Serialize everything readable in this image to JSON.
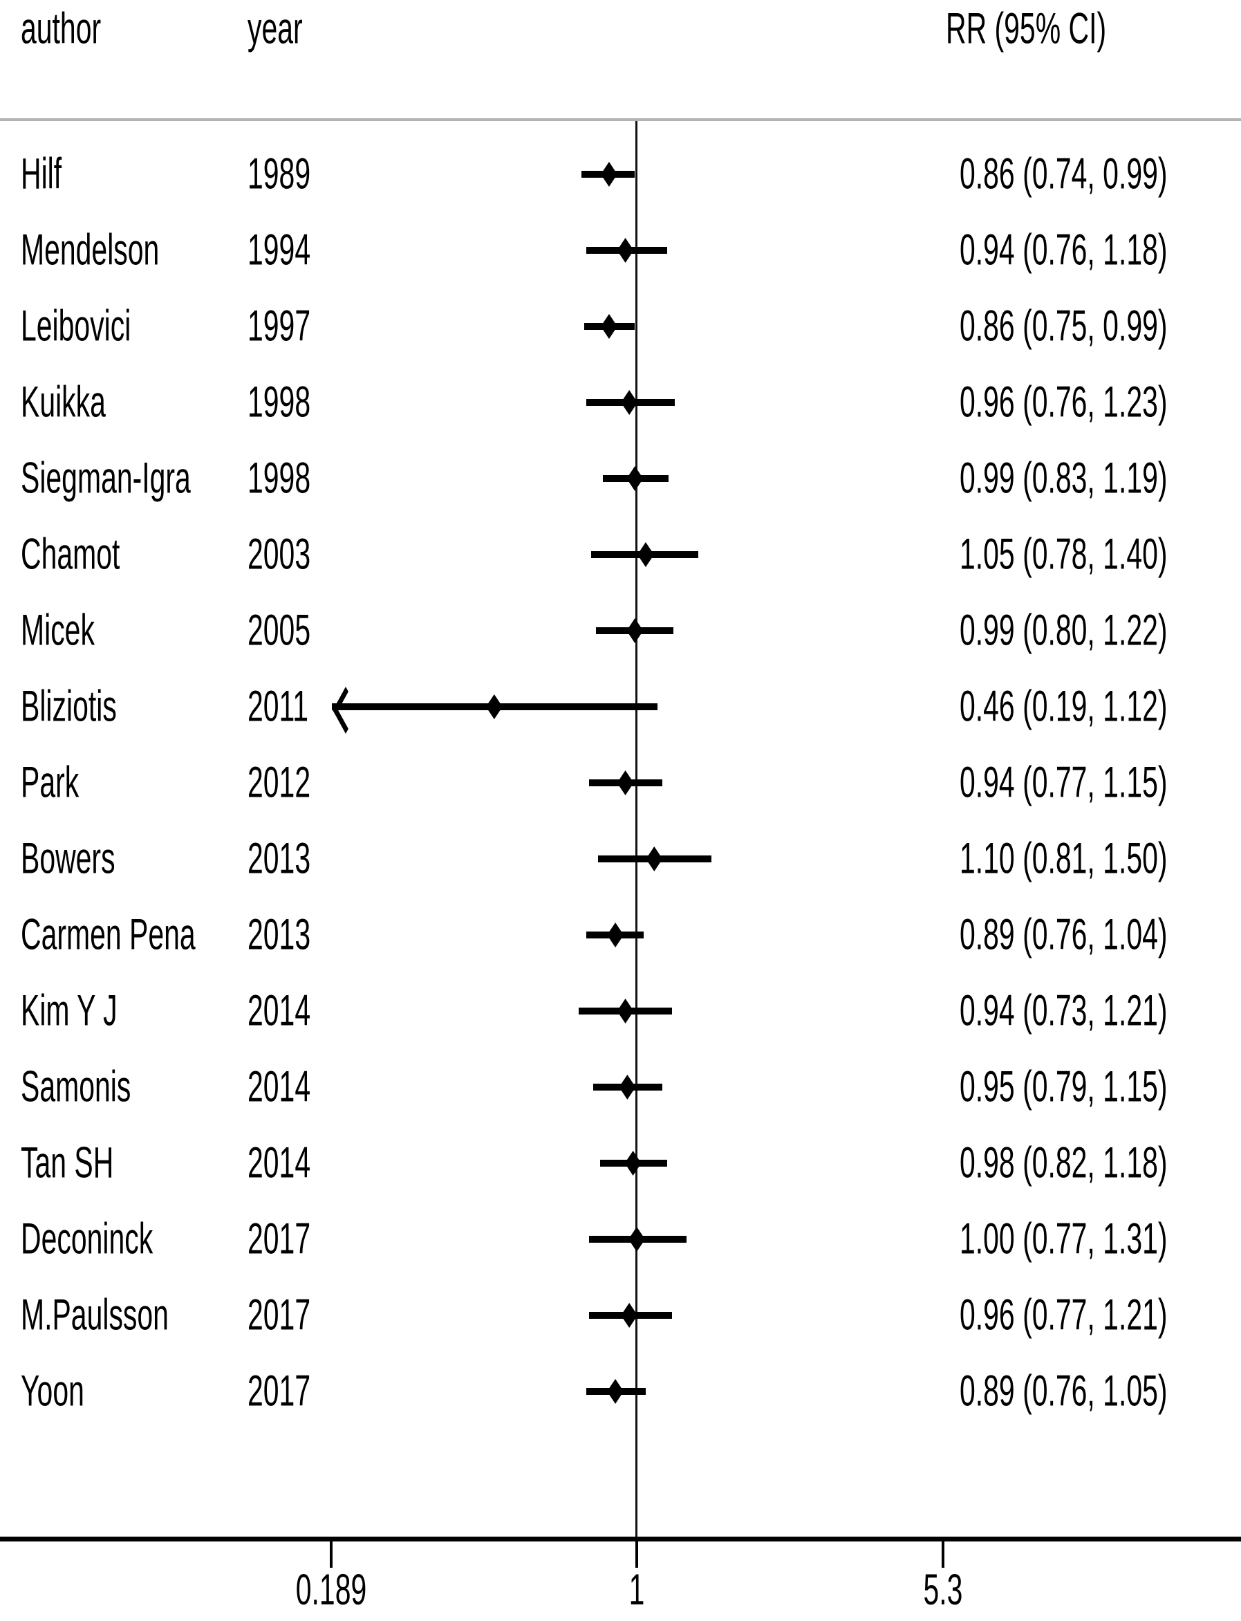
{
  "figure": {
    "columns": {
      "author": "author",
      "year": "year",
      "rr": "RR (95% CI)"
    }
  },
  "chart_data": {
    "type": "scatter",
    "variant": "forest_plot",
    "title": "",
    "columns": [
      "author",
      "year",
      "RR (95% CI)"
    ],
    "x_axis": {
      "scale": "log",
      "tick_values": [
        0.189,
        1,
        5.3
      ],
      "tick_labels": [
        "0.189",
        "1",
        "5.3"
      ],
      "reference_value": 1
    },
    "legend": "none",
    "grid": "off",
    "studies": [
      {
        "author": "Hilf",
        "year": "1989",
        "rr": 0.86,
        "lo": 0.74,
        "hi": 0.99,
        "label": "0.86 (0.74, 0.99)"
      },
      {
        "author": "Mendelson",
        "year": "1994",
        "rr": 0.94,
        "lo": 0.76,
        "hi": 1.18,
        "label": "0.94 (0.76, 1.18)"
      },
      {
        "author": "Leibovici",
        "year": "1997",
        "rr": 0.86,
        "lo": 0.75,
        "hi": 0.99,
        "label": "0.86 (0.75, 0.99)"
      },
      {
        "author": "Kuikka",
        "year": "1998",
        "rr": 0.96,
        "lo": 0.76,
        "hi": 1.23,
        "label": "0.96 (0.76, 1.23)"
      },
      {
        "author": "Siegman-Igra",
        "year": "1998",
        "rr": 0.99,
        "lo": 0.83,
        "hi": 1.19,
        "label": "0.99 (0.83, 1.19)"
      },
      {
        "author": "Chamot",
        "year": "2003",
        "rr": 1.05,
        "lo": 0.78,
        "hi": 1.4,
        "label": "1.05 (0.78, 1.40)"
      },
      {
        "author": "Micek",
        "year": "2005",
        "rr": 0.99,
        "lo": 0.8,
        "hi": 1.22,
        "label": "0.99 (0.80, 1.22)"
      },
      {
        "author": "Bliziotis",
        "year": "2011",
        "rr": 0.46,
        "lo": 0.19,
        "hi": 1.12,
        "label": "0.46 (0.19, 1.12)",
        "clip_low_arrow": true
      },
      {
        "author": "Park",
        "year": "2012",
        "rr": 0.94,
        "lo": 0.77,
        "hi": 1.15,
        "label": "0.94 (0.77, 1.15)"
      },
      {
        "author": "Bowers",
        "year": "2013",
        "rr": 1.1,
        "lo": 0.81,
        "hi": 1.5,
        "label": "1.10 (0.81, 1.50)"
      },
      {
        "author": "Carmen Pena",
        "year": "2013",
        "rr": 0.89,
        "lo": 0.76,
        "hi": 1.04,
        "label": "0.89 (0.76, 1.04)"
      },
      {
        "author": "Kim Y J",
        "year": "2014",
        "rr": 0.94,
        "lo": 0.73,
        "hi": 1.21,
        "label": "0.94 (0.73, 1.21)"
      },
      {
        "author": "Samonis",
        "year": "2014",
        "rr": 0.95,
        "lo": 0.79,
        "hi": 1.15,
        "label": "0.95 (0.79, 1.15)"
      },
      {
        "author": "Tan SH",
        "year": "2014",
        "rr": 0.98,
        "lo": 0.82,
        "hi": 1.18,
        "label": "0.98 (0.82, 1.18)"
      },
      {
        "author": "Deconinck",
        "year": "2017",
        "rr": 1.0,
        "lo": 0.77,
        "hi": 1.31,
        "label": "1.00 (0.77, 1.31)"
      },
      {
        "author": "M.Paulsson",
        "year": "2017",
        "rr": 0.96,
        "lo": 0.77,
        "hi": 1.21,
        "label": "0.96 (0.77, 1.21)"
      },
      {
        "author": "Yoon",
        "year": "2017",
        "rr": 0.89,
        "lo": 0.76,
        "hi": 1.05,
        "label": "0.89 (0.76, 1.05)"
      }
    ]
  }
}
